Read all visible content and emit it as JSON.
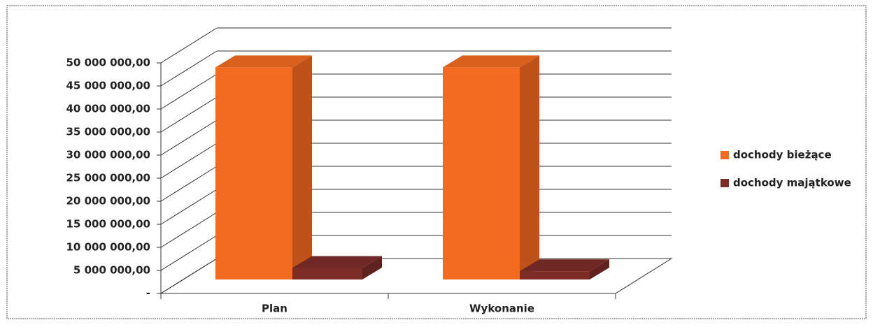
{
  "chart_data": {
    "type": "bar3d",
    "categories": [
      "Plan",
      "Wykonanie"
    ],
    "series": [
      {
        "name": "dochody bieżące",
        "color": "#f26b21",
        "values": [
          46000000,
          46000000
        ]
      },
      {
        "name": "dochody majątkowe",
        "color": "#7b2c27",
        "values": [
          2500000,
          1800000
        ]
      }
    ],
    "ylim": [
      0,
      50000000
    ],
    "yticks": [
      {
        "value": 0,
        "label": "-"
      },
      {
        "value": 5000000,
        "label": "5 000 000,00"
      },
      {
        "value": 10000000,
        "label": "10 000 000,00"
      },
      {
        "value": 15000000,
        "label": "15 000 000,00"
      },
      {
        "value": 20000000,
        "label": "20 000 000,00"
      },
      {
        "value": 25000000,
        "label": "25 000 000,00"
      },
      {
        "value": 30000000,
        "label": "30 000 000,00"
      },
      {
        "value": 35000000,
        "label": "35 000 000,00"
      },
      {
        "value": 40000000,
        "label": "40 000 000,00"
      },
      {
        "value": 45000000,
        "label": "45 000 000,00"
      },
      {
        "value": 50000000,
        "label": "50 000 000,00"
      }
    ],
    "grid": true,
    "legend": "right"
  }
}
